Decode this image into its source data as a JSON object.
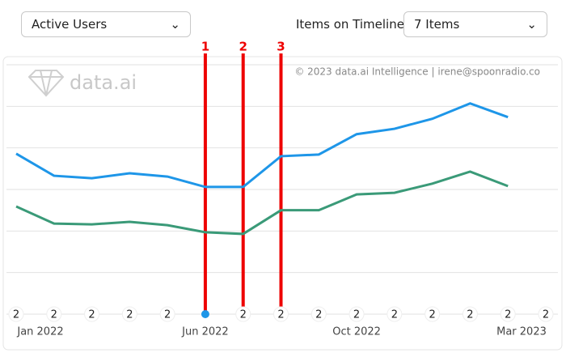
{
  "controls": {
    "metric": "Active Users",
    "items_label": "Items on Timeline:",
    "items": "7 Items"
  },
  "watermark": "data.ai",
  "copyright": "© 2023 data.ai Intelligence | irene@spoonradio.co",
  "chart_data": {
    "type": "line",
    "categories": [
      "Jan 2022",
      null,
      null,
      null,
      null,
      "Jun 2022",
      null,
      null,
      null,
      "Oct 2022",
      null,
      null,
      null,
      null,
      "Mar 2023"
    ],
    "series": [
      {
        "color": "#1e96e8",
        "values": [
          3.86,
          3.33,
          3.27,
          3.39,
          3.31,
          3.06,
          3.06,
          3.8,
          3.84,
          4.33,
          4.46,
          4.7,
          5.07,
          4.74,
          null
        ]
      },
      {
        "color": "#3a9a78",
        "values": [
          2.59,
          2.18,
          2.16,
          2.22,
          2.14,
          1.97,
          1.93,
          2.5,
          2.5,
          2.88,
          2.92,
          3.14,
          3.43,
          3.08,
          null
        ]
      }
    ],
    "ylim": [
      0,
      6
    ],
    "yticks": [
      0,
      1,
      2,
      3,
      4,
      5,
      6
    ],
    "grid": true,
    "timeline_markers": [
      "2",
      "2",
      "2",
      "2",
      "2",
      null,
      "2",
      "2",
      "2",
      "2",
      "2",
      "2",
      "2",
      "2",
      "2"
    ],
    "annotations": [
      {
        "label": "1",
        "index": 5
      },
      {
        "label": "2",
        "index": 6
      },
      {
        "label": "3",
        "index": 7
      }
    ]
  }
}
